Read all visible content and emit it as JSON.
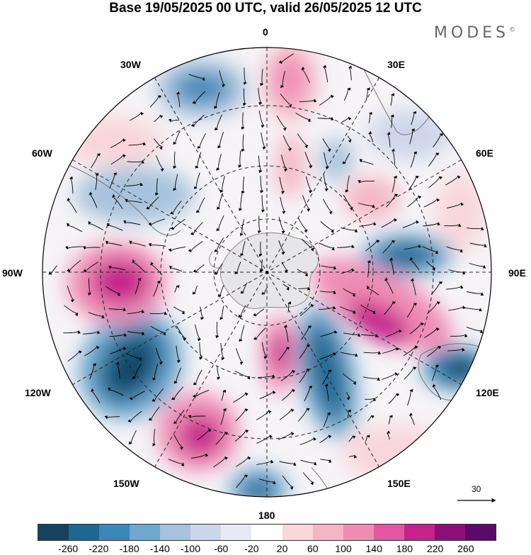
{
  "title": "Base 19/05/2025 00 UTC, valid 26/05/2025 12 UTC",
  "brand": "MODES",
  "brand_mark": "©",
  "longitude_labels": {
    "lon_0": "0",
    "lon_30e": "30E",
    "lon_60e": "60E",
    "lon_90e": "90E",
    "lon_120e": "120E",
    "lon_150e": "150E",
    "lon_180": "180",
    "lon_150w": "150W",
    "lon_120w": "120W",
    "lon_90w": "90W",
    "lon_60w": "60W",
    "lon_30w": "30W"
  },
  "reference_vector": "30",
  "colorbar": {
    "ticks": [
      "-260",
      "-220",
      "-180",
      "-140",
      "-100",
      "-60",
      "-20",
      "20",
      "60",
      "100",
      "140",
      "180",
      "220",
      "260"
    ],
    "colors": [
      "#16425f",
      "#1f6690",
      "#3a87b8",
      "#6ea8cf",
      "#a7c2dc",
      "#cdd6e8",
      "#e9e9f3",
      "#ffffff",
      "#f8d6da",
      "#f4b6c5",
      "#ef8cb4",
      "#e2579f",
      "#c5238a",
      "#8e0f79",
      "#5a0b6a"
    ]
  }
}
